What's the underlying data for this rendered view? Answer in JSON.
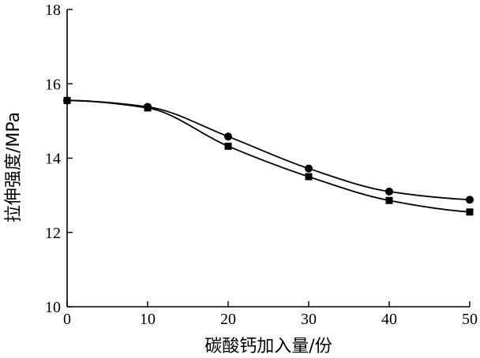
{
  "chart_data": {
    "type": "line",
    "xlabel": "碳酸钙加入量/份",
    "ylabel": "拉伸强度/MPa",
    "xlim": [
      0,
      50
    ],
    "ylim": [
      10,
      18
    ],
    "x_ticks": [
      0,
      10,
      20,
      30,
      40,
      50
    ],
    "y_ticks": [
      10,
      12,
      14,
      16,
      18
    ],
    "x_tick_labels": [
      "0",
      "10",
      "20",
      "30",
      "40",
      "50"
    ],
    "y_tick_labels": [
      "10",
      "12",
      "14",
      "16",
      "18"
    ],
    "grid": false,
    "legend": "none",
    "x": [
      0,
      10,
      20,
      30,
      40,
      50
    ],
    "series": [
      {
        "marker": "circle",
        "values": [
          15.55,
          15.38,
          14.58,
          13.72,
          13.1,
          12.88
        ]
      },
      {
        "marker": "square",
        "values": [
          15.55,
          15.35,
          14.32,
          13.5,
          12.86,
          12.55
        ]
      }
    ]
  }
}
